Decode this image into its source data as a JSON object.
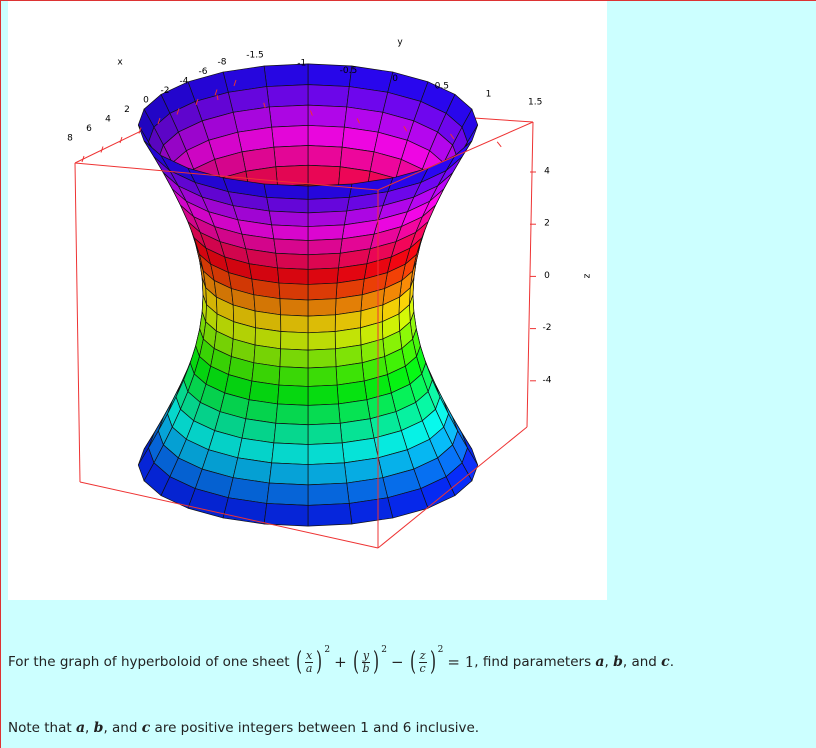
{
  "plot": {
    "x_axis_label": "x",
    "y_axis_label": "y",
    "z_axis_label": "z",
    "x_ticks": [
      "8",
      "6",
      "4",
      "2",
      "0",
      "-2",
      "-4",
      "-6",
      "-8"
    ],
    "y_ticks": [
      "-1.5",
      "-1",
      "-0.5",
      "0",
      "0.5",
      "1",
      "1.5"
    ],
    "z_ticks": [
      "4",
      "2",
      "0",
      "-2",
      "-4"
    ]
  },
  "question": {
    "before": "For the graph of hyperboloid of one sheet ",
    "equation": {
      "terms": [
        {
          "num": "x",
          "den": "a",
          "exp": "2"
        },
        {
          "num": "y",
          "den": "b",
          "exp": "2"
        },
        {
          "num": "z",
          "den": "c",
          "exp": "2"
        }
      ],
      "operators": [
        "+",
        "−"
      ],
      "rhs": "= 1"
    },
    "after": [
      {
        "text": ", find parameters ",
        "math": false
      },
      {
        "text": "a",
        "math": true
      },
      {
        "text": ", ",
        "math": false
      },
      {
        "text": "b",
        "math": true
      },
      {
        "text": ", and ",
        "math": false
      },
      {
        "text": "c",
        "math": true
      },
      {
        "text": ".",
        "math": false
      }
    ]
  },
  "note": [
    {
      "text": "Note that ",
      "math": false
    },
    {
      "text": "a",
      "math": true
    },
    {
      "text": ", ",
      "math": false
    },
    {
      "text": "b",
      "math": true
    },
    {
      "text": ", and ",
      "math": false
    },
    {
      "text": "c",
      "math": true
    },
    {
      "text": " are positive integers between 1 and 6 inclusive.",
      "math": false
    }
  ]
}
